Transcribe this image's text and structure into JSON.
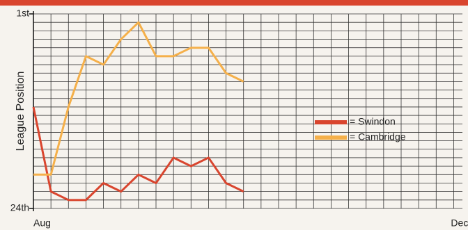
{
  "chart_data": {
    "type": "line",
    "y_label": "League Position",
    "categories": [
      "Aug",
      null,
      null,
      null,
      null,
      null,
      null,
      null,
      null,
      null,
      null,
      null,
      null,
      null,
      null,
      null,
      null,
      null,
      null,
      null,
      null,
      null,
      null,
      null,
      "Dec"
    ],
    "ylim": [
      24,
      1
    ],
    "yticks": [
      {
        "value": 1,
        "label": "1st"
      },
      {
        "value": 24,
        "label": "24th"
      }
    ],
    "grid": true,
    "legend": "right",
    "series": [
      {
        "name": "= Swindon",
        "color": "#d9452e",
        "values": [
          12,
          22,
          23,
          23,
          21,
          22,
          20,
          21,
          18,
          19,
          18,
          21,
          22,
          null,
          null,
          null,
          null,
          null,
          null,
          null,
          null,
          null,
          null,
          null,
          null
        ]
      },
      {
        "name": "= Cambridge",
        "color": "#f5b04a",
        "values": [
          20,
          20,
          12,
          6,
          7,
          4,
          2,
          6,
          6,
          5,
          5,
          8,
          9,
          null,
          null,
          null,
          null,
          null,
          null,
          null,
          null,
          null,
          null,
          null,
          null
        ]
      }
    ]
  }
}
